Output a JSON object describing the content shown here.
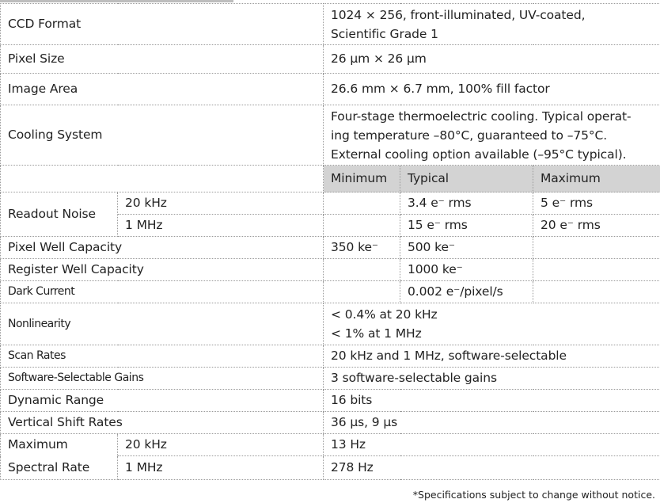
{
  "rows": {
    "ccd_format": {
      "label": "CCD Format",
      "value_line1": "1024 × 256, front-illuminated, UV-coated,",
      "value_line2": "Scientific Grade 1"
    },
    "pixel_size": {
      "label": "Pixel Size",
      "value": "26 μm × 26 μm"
    },
    "image_area": {
      "label": "Image Area",
      "value": "26.6 mm × 6.7 mm, 100% fill factor"
    },
    "cooling": {
      "label": "Cooling System",
      "line1": "Four-stage thermoelectric cooling. Typical operat-",
      "line2": "ing temperature –80°C, guaranteed to –75°C.",
      "line3": "External cooling option available (–95°C typical)."
    },
    "header": {
      "min": "Minimum",
      "typ": "Typical",
      "max": "Maximum"
    },
    "readout_noise": {
      "label": "Readout Noise",
      "r1": {
        "rate": "20 kHz",
        "typ": "3.4 e⁻ rms",
        "max": "5 e⁻ rms"
      },
      "r2": {
        "rate": "1 MHz",
        "typ": "15 e⁻ rms",
        "max": "20 e⁻ rms"
      }
    },
    "pixel_well": {
      "label": "Pixel Well Capacity",
      "min": "350 ke⁻",
      "typ": "500 ke⁻"
    },
    "register_well": {
      "label": "Register Well Capacity",
      "typ": "1000 ke⁻"
    },
    "dark_current": {
      "label": "Dark Current",
      "typ": "0.002 e⁻/pixel/s"
    },
    "nonlinearity": {
      "label": "Nonlinearity",
      "line1": "< 0.4% at  20 kHz",
      "line2": "< 1% at 1 MHz"
    },
    "scan_rates": {
      "label": "Scan Rates",
      "value": "20 kHz and 1 MHz,  software-selectable"
    },
    "gains": {
      "label": "Software-Selectable Gains",
      "value": "3 software-selectable gains"
    },
    "dynamic_range": {
      "label": "Dynamic Range",
      "value": "16 bits"
    },
    "vshift": {
      "label": "Vertical Shift Rates",
      "value": "36 μs, 9 μs"
    },
    "max_spectral": {
      "label_line1": "Maximum",
      "label_line2": "Spectral Rate",
      "r1": {
        "rate": "20 kHz",
        "value": "13 Hz"
      },
      "r2": {
        "rate": "1 MHz",
        "value": "278 Hz"
      }
    }
  },
  "footnote": "*Specifications subject to change without notice.",
  "colors": {
    "header_bg": "#d3d3d3",
    "border": "#9a9a9a"
  }
}
